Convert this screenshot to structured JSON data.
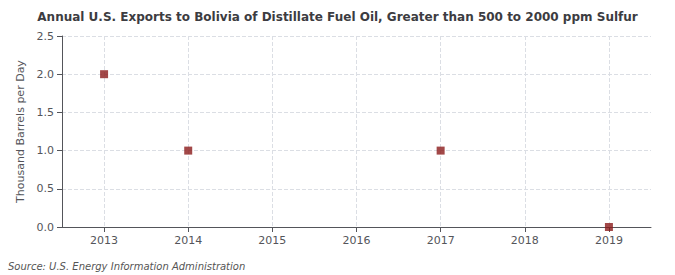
{
  "chart_data": {
    "type": "scatter",
    "title": "Annual U.S. Exports to Bolivia of Distillate Fuel Oil, Greater than 500 to 2000 ppm Sulfur",
    "ylabel": "Thousand Barrels per Day",
    "annotations": [
      "Source: U.S. Energy Information Administration"
    ],
    "x": [
      2013,
      2014,
      2015,
      2016,
      2017,
      2018,
      2019
    ],
    "values": [
      2.0,
      1.0,
      null,
      null,
      1.0,
      null,
      0.0
    ],
    "color": "#8b1a1a",
    "marker": "square",
    "xlim": [
      2012.5,
      2019.5
    ],
    "xticks": [
      2013,
      2014,
      2015,
      2016,
      2017,
      2018,
      2019
    ],
    "ylim": [
      0.0,
      2.5
    ],
    "yticks": [
      {
        "value": 0.0,
        "label": "0.0"
      },
      0.5,
      {
        "value": 1.0,
        "label": "1.0"
      },
      1.5,
      {
        "value": 2.0,
        "label": "2.0"
      },
      2.5
    ],
    "grid": true
  }
}
